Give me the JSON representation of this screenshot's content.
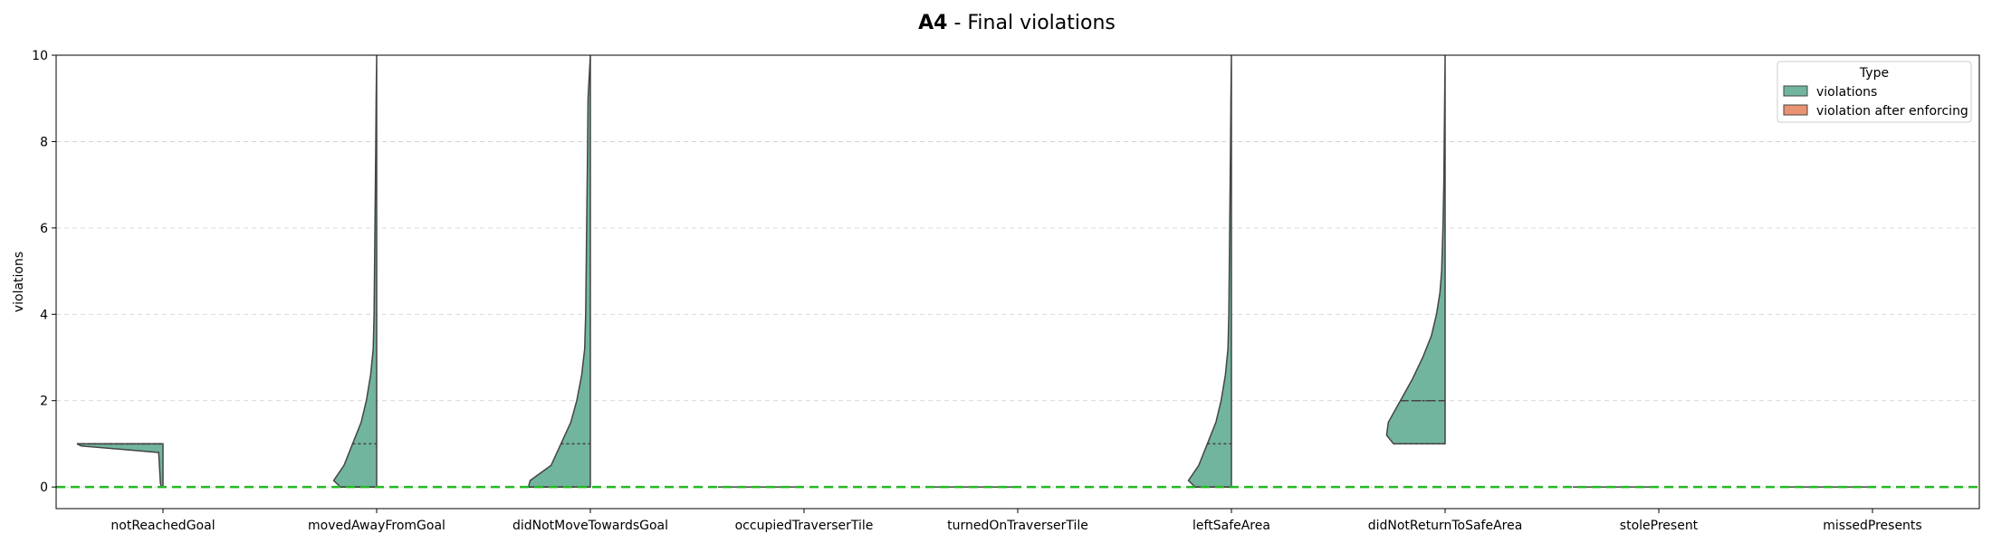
{
  "chart_data": {
    "type": "violin",
    "title_bold": "A4",
    "title_rest": " - Final violations",
    "xlabel": "",
    "ylabel": "violations",
    "ylim": [
      -0.5,
      10
    ],
    "yticks": [
      "0",
      "2",
      "4",
      "6",
      "8",
      "10"
    ],
    "grid": "horizontal-dashed",
    "reference_line": {
      "y": 0,
      "color": "#22bb22",
      "style": "dashed"
    },
    "categories": [
      "notReachedGoal",
      "movedAwayFromGoal",
      "didNotMoveTowardsGoal",
      "occupiedTraverserTile",
      "turnedOnTraverserTile",
      "leftSafeArea",
      "didNotReturnToSafeArea",
      "stolePresent",
      "missedPresents"
    ],
    "series": [
      {
        "name": "violations",
        "color": "#72b59f",
        "side": "left",
        "median": [
          1,
          0,
          0,
          0,
          0,
          0,
          2,
          0,
          0
        ],
        "q1": [
          1,
          0,
          0,
          0,
          0,
          0,
          1,
          0,
          0
        ],
        "q3": [
          1,
          1,
          1,
          0,
          0,
          1,
          2,
          0,
          0
        ],
        "min": [
          0,
          0,
          0,
          0,
          0,
          0,
          1,
          0,
          0
        ],
        "max": [
          1,
          10,
          10,
          0,
          0,
          10,
          10,
          0,
          0
        ]
      },
      {
        "name": "violation after enforcing",
        "color": "#e99272",
        "side": "right",
        "values": [
          0,
          0,
          0,
          0,
          0,
          0,
          0,
          0,
          0
        ]
      }
    ],
    "legend": {
      "title": "Type",
      "position": "top-right"
    }
  }
}
